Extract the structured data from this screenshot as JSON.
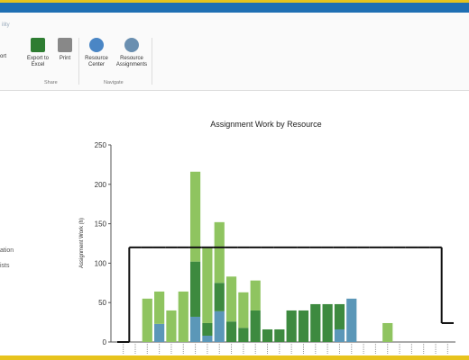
{
  "ribbon": {
    "tab": "ility",
    "left_label": "ort",
    "groups": [
      {
        "name": "Share",
        "buttons": [
          "Export to Excel",
          "Print"
        ]
      },
      {
        "name": "Navigate",
        "buttons": [
          "Resource Center",
          "Resource Assignments"
        ]
      }
    ]
  },
  "sidebar": {
    "items": [
      "ation",
      "ists"
    ]
  },
  "chart_data": {
    "type": "bar",
    "stacked": true,
    "title": "Assignment Work by Resource",
    "y_label": "Assignment Work (h)",
    "categories": [
      null,
      null,
      null,
      null,
      null,
      null,
      null,
      null,
      null,
      null,
      null,
      null,
      null,
      null,
      null,
      null,
      null,
      null,
      null,
      null,
      null,
      null,
      null,
      null,
      null,
      null,
      null,
      null
    ],
    "series": [
      {
        "color": "#5b97b8",
        "values": [
          null,
          null,
          null,
          23,
          null,
          null,
          32,
          8,
          39,
          null,
          null,
          null,
          null,
          null,
          null,
          null,
          null,
          null,
          16,
          55,
          null,
          null,
          null,
          null,
          null,
          null,
          null,
          null
        ]
      },
      {
        "color": "#3d8a3f",
        "values": [
          null,
          null,
          null,
          null,
          null,
          null,
          70,
          16,
          36,
          26,
          18,
          40,
          16,
          16,
          40,
          40,
          48,
          48,
          32,
          null,
          null,
          null,
          null,
          null,
          null,
          null,
          null,
          null
        ]
      },
      {
        "color": "#8fc460",
        "values": [
          null,
          null,
          55,
          41,
          40,
          64,
          114,
          95,
          77,
          57,
          45,
          38,
          null,
          null,
          null,
          null,
          null,
          null,
          null,
          null,
          null,
          null,
          24,
          null,
          null,
          null,
          null,
          null
        ]
      }
    ],
    "line": {
      "color": "#111111",
      "values": [
        0,
        120,
        120,
        120,
        120,
        120,
        120,
        120,
        120,
        120,
        120,
        120,
        120,
        120,
        120,
        120,
        120,
        120,
        120,
        120,
        120,
        120,
        120,
        120,
        120,
        120,
        120,
        24
      ]
    },
    "ylim": [
      0,
      250
    ],
    "yticks": [
      0,
      50,
      100,
      150,
      200,
      250
    ]
  }
}
